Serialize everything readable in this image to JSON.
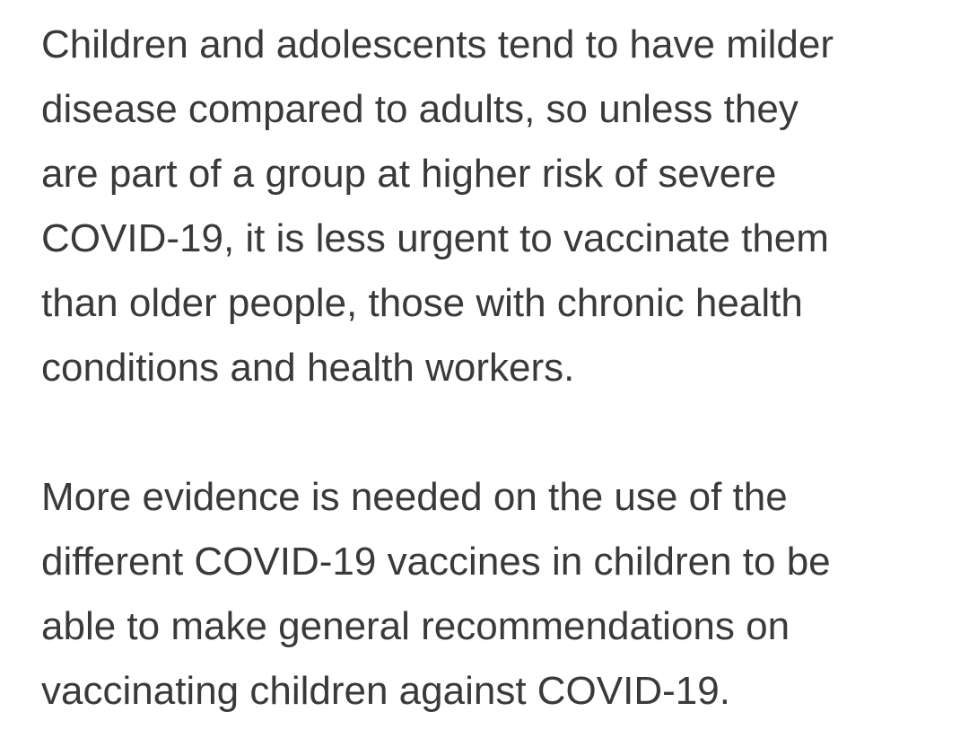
{
  "article": {
    "paragraphs": [
      {
        "lines": [
          "Children and adolescents tend to have milder",
          "disease compared to adults, so unless they",
          "are part of a group at higher risk of severe",
          "COVID-19, it is less urgent to vaccinate them",
          "than older people, those with chronic health",
          "conditions and health workers."
        ]
      },
      {
        "lines": [
          "More evidence is needed on the use of the",
          "different COVID-19 vaccines in children to be",
          "able to make general recommendations on",
          "vaccinating children against COVID-19."
        ]
      }
    ]
  }
}
